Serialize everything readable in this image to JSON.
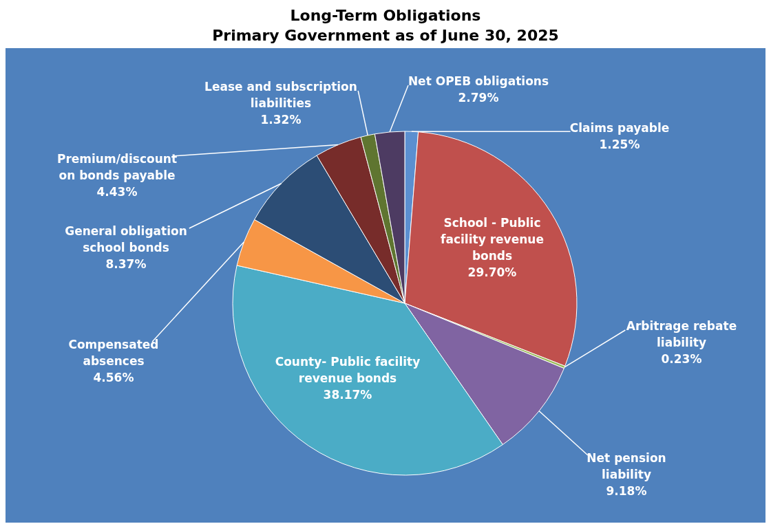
{
  "chart_data": {
    "type": "pie",
    "title": "Long-Term Obligations",
    "subtitle": "Primary Government as of June 30, 2025",
    "categories": [
      "Claims payable",
      "School - Public facility revenue bonds",
      "Arbitrage rebate liability",
      "Net pension liability",
      "County- Public facility revenue bonds",
      "Compensated absences",
      "General obligation school bonds",
      "Premium/discount on bonds payable",
      "Lease and subscription liabilities",
      "Net OPEB obligations"
    ],
    "values": [
      1.25,
      29.7,
      0.23,
      9.18,
      38.17,
      4.56,
      8.37,
      4.43,
      1.32,
      2.79
    ],
    "value_labels": [
      "1.25%",
      "29.70%",
      "0.23%",
      "9.18%",
      "38.17%",
      "4.56%",
      "8.37%",
      "4.43%",
      "1.32%",
      "2.79%"
    ],
    "colors": [
      "#5b8fd0",
      "#c0504d",
      "#9bbb59",
      "#8064a2",
      "#4bacc6",
      "#f79646",
      "#2c4d75",
      "#772c2a",
      "#5f7530",
      "#4d3b62"
    ]
  }
}
